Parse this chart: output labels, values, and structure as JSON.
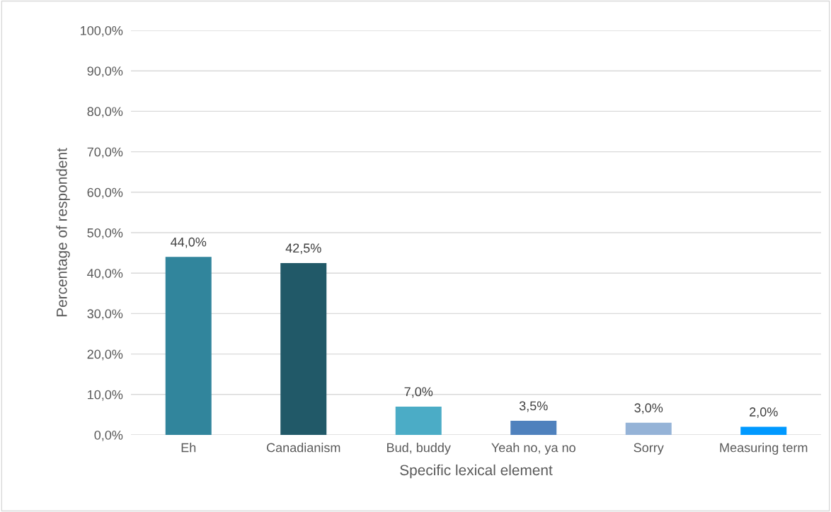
{
  "chart_data": {
    "type": "bar",
    "xlabel": "Specific lexical element",
    "ylabel": "Percentage of respondent",
    "categories": [
      "Eh",
      "Canadianism",
      "Bud, buddy",
      "Yeah no, ya no",
      "Sorry",
      "Measuring term"
    ],
    "values": [
      44.0,
      42.5,
      7.0,
      3.5,
      3.0,
      2.0
    ],
    "colors": [
      "#31859c",
      "#215968",
      "#4bacc6",
      "#4f81bd",
      "#95b3d7",
      "#0099ff"
    ],
    "value_labels": [
      "44,0%",
      "42,5%",
      "7,0%",
      "3,5%",
      "3,0%",
      "2,0%"
    ],
    "ylim": [
      0,
      100
    ],
    "yticks": [
      {
        "value": 0,
        "label": "0,0%"
      },
      {
        "value": 10,
        "label": "10,0%"
      },
      {
        "value": 20,
        "label": "20,0%"
      },
      {
        "value": 30,
        "label": "30,0%"
      },
      {
        "value": 40,
        "label": "40,0%"
      },
      {
        "value": 50,
        "label": "50,0%"
      },
      {
        "value": 60,
        "label": "60,0%"
      },
      {
        "value": 70,
        "label": "70,0%"
      },
      {
        "value": 80,
        "label": "80,0%"
      },
      {
        "value": 90,
        "label": "90,0%"
      },
      {
        "value": 100,
        "label": "100,0%"
      }
    ],
    "grid": "y"
  }
}
